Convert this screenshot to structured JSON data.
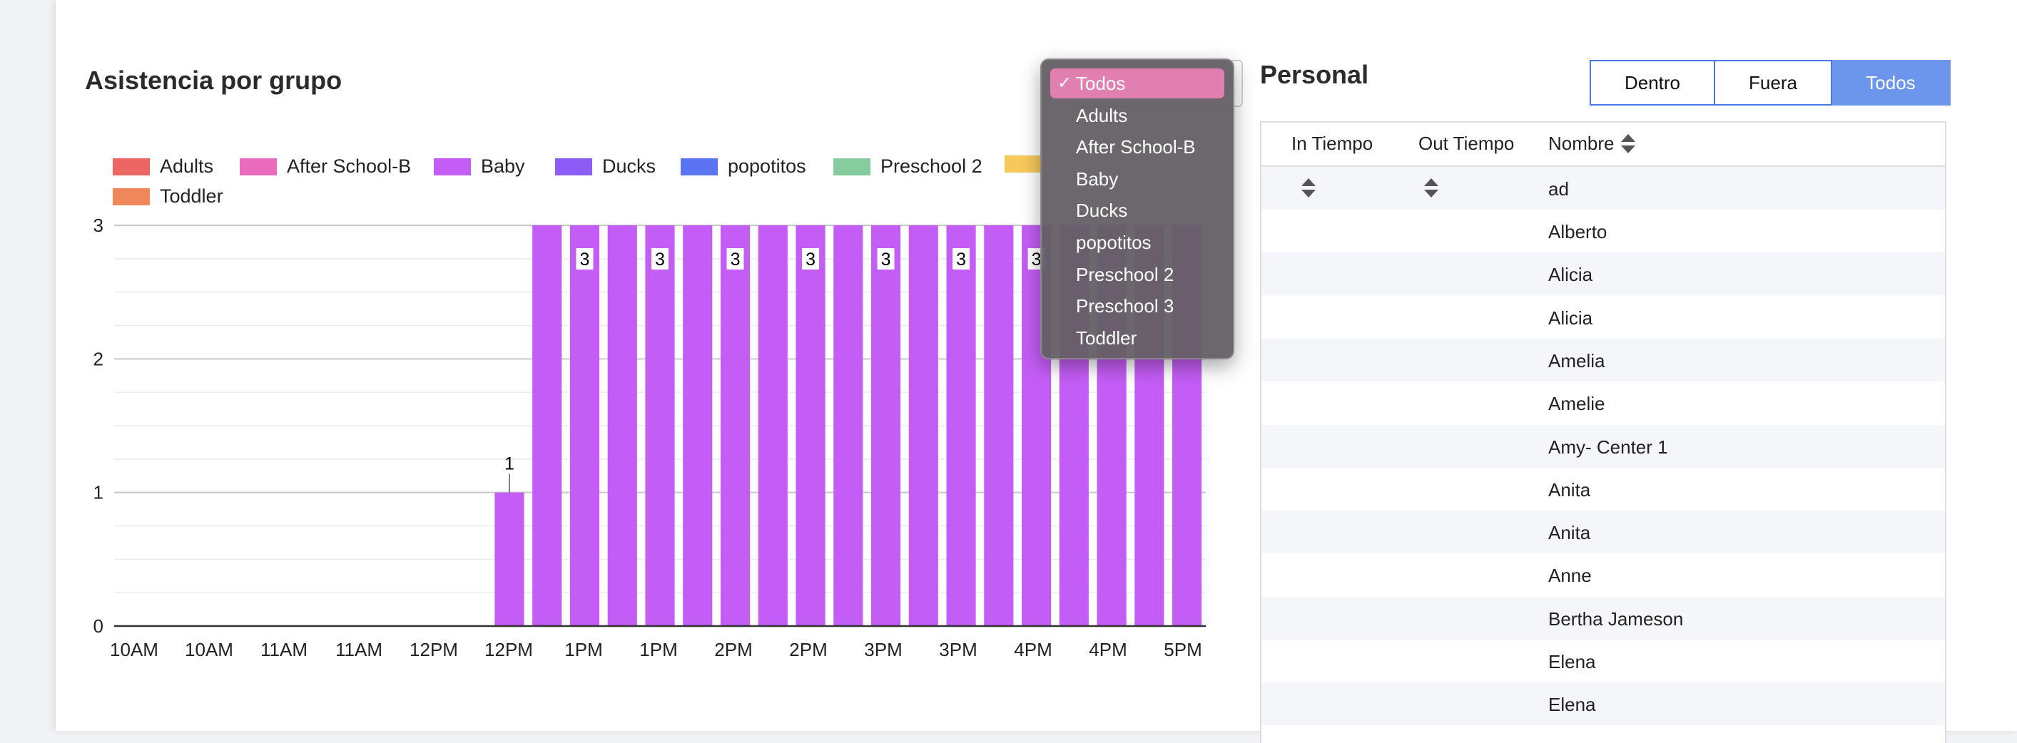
{
  "chart_title": "Asistencia por grupo",
  "staff_title": "Personal",
  "filter": {
    "options": [
      "Todos",
      "Adults",
      "After School-B",
      "Baby",
      "Ducks",
      "popotitos",
      "Preschool 2",
      "Preschool 3",
      "Toddler"
    ],
    "selected": "Todos",
    "check_glyph": "✓"
  },
  "tabs": [
    {
      "label": "Dentro",
      "active": false
    },
    {
      "label": "Fuera",
      "active": false
    },
    {
      "label": "Todos",
      "active": true
    }
  ],
  "table": {
    "columns": [
      "In Tiempo",
      "Out Tiempo",
      "Nombre"
    ],
    "filter_value": "ad",
    "rows": [
      "Alberto",
      "Alicia",
      "Alicia",
      "Amelia",
      "Amelie",
      "Amy- Center 1",
      "Anita",
      "Anita",
      "Anne",
      "Bertha Jameson",
      "Elena",
      "Elena"
    ]
  },
  "chart_data": {
    "type": "bar",
    "title": "Asistencia por grupo",
    "legend": [
      {
        "name": "Adults",
        "color": "#ee6663"
      },
      {
        "name": "After School-B",
        "color": "#ea6bbd"
      },
      {
        "name": "Baby",
        "color": "#c45df5"
      },
      {
        "name": "Ducks",
        "color": "#8b5cf6"
      },
      {
        "name": "popotitos",
        "color": "#5b74f2"
      },
      {
        "name": "Preschool 2",
        "color": "#86cc9f"
      },
      {
        "name": "",
        "color": "#f5c95b"
      },
      {
        "name": "Toddler",
        "color": "#f0875a"
      }
    ],
    "x_tick_labels": [
      "10AM",
      "10AM",
      "11AM",
      "11AM",
      "12PM",
      "12PM",
      "1PM",
      "1PM",
      "2PM",
      "2PM",
      "3PM",
      "3PM",
      "4PM",
      "4PM",
      "5PM"
    ],
    "ylim": [
      0,
      3
    ],
    "yticks": [
      0,
      1,
      2,
      3
    ],
    "series": [
      {
        "name": "Baby",
        "color": "#c45df5",
        "values": [
          0,
          0,
          0,
          0,
          0,
          0,
          0,
          0,
          0,
          0,
          1,
          3,
          3,
          3,
          3,
          3,
          3,
          3,
          3,
          3,
          3,
          3,
          3,
          3,
          3,
          3,
          3,
          3,
          3
        ]
      }
    ],
    "data_labels": [
      null,
      null,
      null,
      null,
      null,
      null,
      null,
      null,
      null,
      null,
      "1",
      null,
      "3",
      null,
      "3",
      null,
      "3",
      null,
      "3",
      null,
      "3",
      null,
      "3",
      null,
      "3",
      null,
      null,
      null,
      null
    ]
  }
}
